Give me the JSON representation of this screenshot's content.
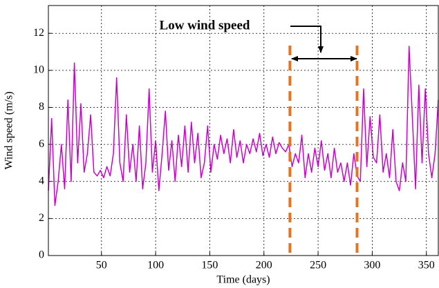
{
  "chart_data": {
    "type": "line",
    "xlabel": "Time (days)",
    "ylabel": "Wind speed (m/s)",
    "annotation": "Low wind speed",
    "vlines": [
      224,
      286
    ],
    "vline_color": "#e8731c",
    "color": "#cc00cc",
    "grid": true,
    "xlim": [
      1,
      361
    ],
    "ylim": [
      0,
      13.5
    ],
    "xticks": [
      50,
      100,
      150,
      200,
      250,
      300,
      350
    ],
    "yticks": [
      0,
      2,
      4,
      6,
      8,
      10,
      12
    ],
    "x": [
      1,
      4,
      7,
      10,
      13,
      16,
      19,
      22,
      25,
      28,
      31,
      34,
      37,
      40,
      43,
      46,
      49,
      52,
      55,
      58,
      61,
      64,
      67,
      70,
      73,
      76,
      79,
      82,
      85,
      88,
      91,
      94,
      97,
      100,
      103,
      106,
      109,
      112,
      115,
      118,
      121,
      124,
      127,
      130,
      133,
      136,
      139,
      142,
      145,
      148,
      151,
      154,
      157,
      160,
      163,
      166,
      169,
      172,
      175,
      178,
      181,
      184,
      187,
      190,
      193,
      196,
      199,
      202,
      205,
      208,
      211,
      214,
      217,
      220,
      223,
      226,
      229,
      232,
      235,
      238,
      241,
      244,
      247,
      250,
      253,
      256,
      259,
      262,
      265,
      268,
      271,
      274,
      277,
      280,
      283,
      286,
      289,
      292,
      295,
      298,
      301,
      304,
      307,
      310,
      313,
      316,
      319,
      322,
      325,
      328,
      331,
      334,
      337,
      340,
      343,
      346,
      349,
      352,
      355,
      358,
      361
    ],
    "values": [
      3.5,
      7.4,
      2.7,
      4.0,
      6.0,
      3.6,
      8.4,
      4.0,
      10.4,
      5.0,
      8.2,
      4.5,
      5.5,
      7.6,
      4.5,
      4.3,
      4.6,
      4.2,
      4.8,
      4.3,
      5.5,
      9.6,
      5.0,
      4.0,
      7.6,
      4.5,
      6.0,
      4.0,
      7.0,
      3.6,
      5.0,
      9.0,
      4.5,
      6.2,
      3.5,
      5.5,
      7.8,
      4.6,
      6.2,
      4.0,
      6.5,
      4.8,
      7.0,
      4.5,
      7.2,
      5.0,
      6.6,
      4.2,
      5.0,
      7.0,
      4.5,
      6.0,
      5.2,
      6.5,
      5.5,
      6.3,
      5.0,
      6.8,
      5.3,
      6.2,
      5.0,
      6.0,
      5.5,
      6.3,
      5.6,
      6.6,
      5.4,
      6.0,
      5.3,
      6.4,
      5.5,
      6.1,
      5.8,
      5.6,
      6.0,
      4.8,
      5.5,
      5.0,
      6.5,
      4.2,
      5.5,
      4.5,
      5.8,
      4.8,
      6.2,
      4.6,
      5.5,
      4.2,
      5.8,
      4.5,
      5.0,
      4.0,
      5.0,
      3.8,
      5.5,
      4.3,
      4.0,
      9.0,
      4.8,
      7.5,
      5.3,
      5.0,
      7.6,
      4.5,
      5.5,
      4.2,
      6.8,
      4.0,
      3.5,
      5.0,
      4.0,
      11.3,
      7.5,
      3.6,
      9.2,
      5.0,
      9.0,
      5.5,
      4.2,
      5.5,
      8.4
    ]
  }
}
